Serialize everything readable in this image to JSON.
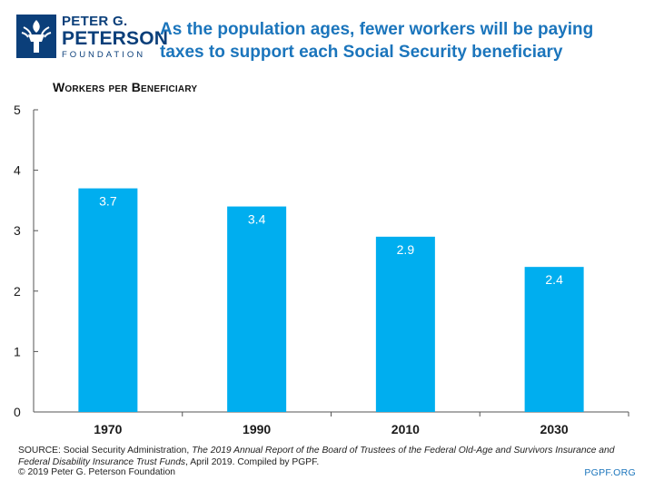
{
  "logo": {
    "line1": "PETER G.",
    "line2": "PETERSON",
    "line3": "FOUNDATION",
    "brand_color": "#0b3f7a"
  },
  "title": "As the population ages, fewer workers will be paying taxes to support each Social Security beneficiary",
  "chart_data": {
    "type": "bar",
    "title": "As the population ages, fewer workers will be paying taxes to support each Social Security beneficiary",
    "ylabel": "Workers per Beneficiary",
    "xlabel": "",
    "categories": [
      "1970",
      "1990",
      "2010",
      "2030"
    ],
    "values": [
      3.7,
      3.4,
      2.9,
      2.4
    ],
    "value_labels": [
      "3.7",
      "3.4",
      "2.9",
      "2.4"
    ],
    "ylim": [
      0,
      5
    ],
    "yticks": [
      0,
      1,
      2,
      3,
      4,
      5
    ],
    "ytick_labels": [
      "0",
      "1",
      "2",
      "3",
      "4",
      "5"
    ],
    "bar_color": "#00aeef",
    "grid": false,
    "legend": "none"
  },
  "source": {
    "prefix": "SOURCE: Social Security Administration, ",
    "report": "The 2019 Annual Report of the Board of Trustees of the Federal Old-Age and Survivors Insurance and Federal Disability Insurance Trust Funds",
    "suffix": ", April 2019. Compiled by PGPF."
  },
  "copyright": "© 2019 Peter G. Peterson Foundation",
  "site": "PGPF.ORG"
}
